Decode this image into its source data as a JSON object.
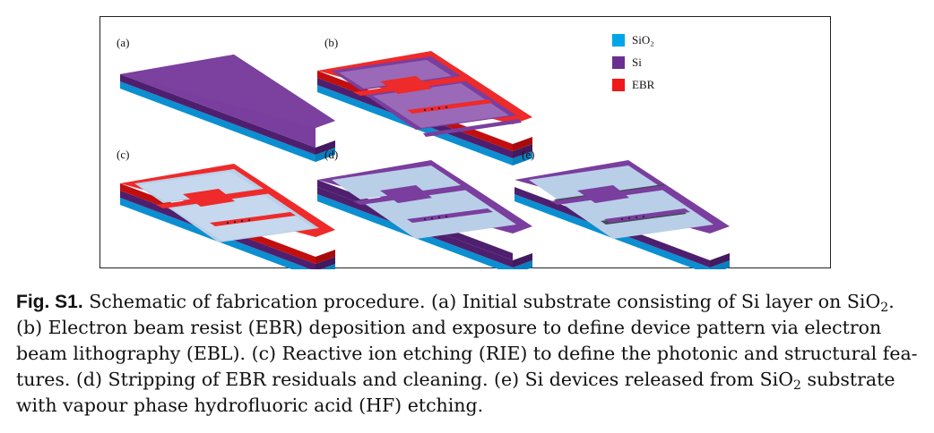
{
  "panels": [
    "(a)",
    "(b)",
    "(c)",
    "(d)",
    "(e)"
  ],
  "legend": [
    {
      "label": "SiO₂",
      "color": "#00a6e8"
    },
    {
      "label": "Si",
      "color": "#6b2f8f"
    },
    {
      "label": "EBR",
      "color": "#f01818"
    }
  ],
  "caption": {
    "fig_label": "Fig. S1.",
    "text_1": " Schematic of fabrication procedure. (a) Initial substrate consisting of Si layer on SiO",
    "sub_1": "2",
    "text_2": ". (b) Electron beam resist (EBR) deposition and exposure to define device pattern via electron beam lithography (EBL). (c) Reactive ion etching (RIE) to define the photonic and structural fea-tures. (d) Stripping of EBR residuals and cleaning. (e) Si devices released from SiO",
    "sub_2": "2",
    "text_3": " substrate with vapour phase hydrofluoric acid (HF) etching."
  }
}
